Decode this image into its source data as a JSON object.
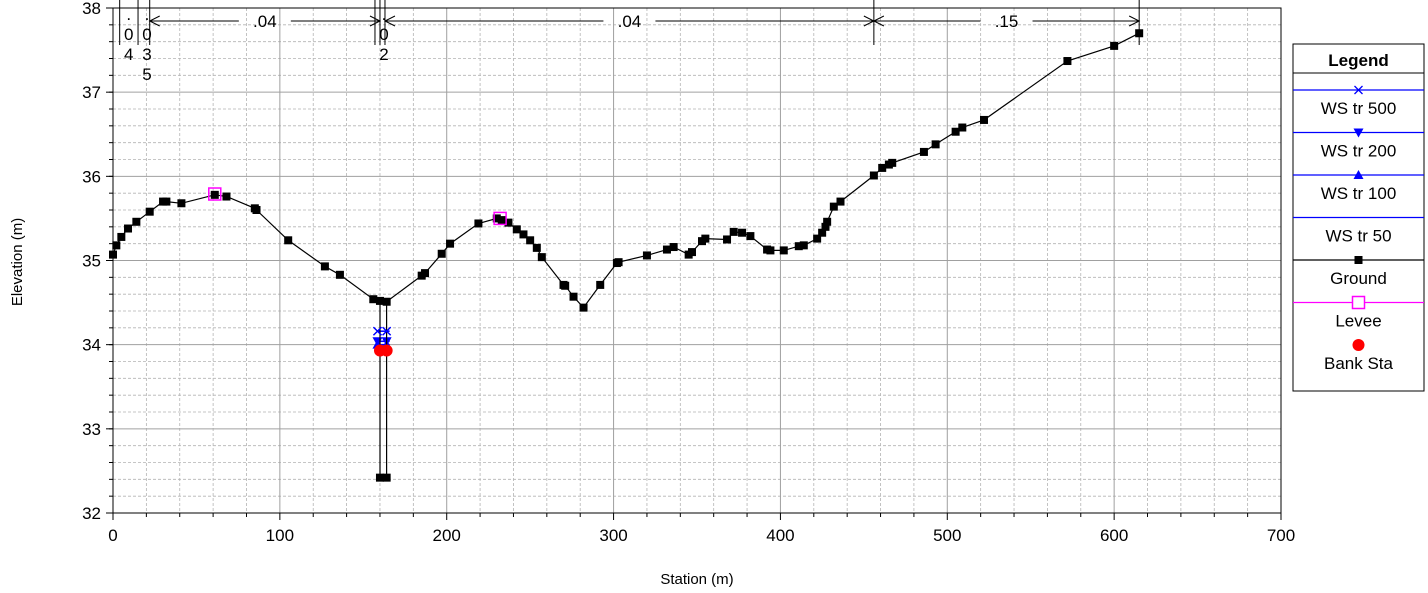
{
  "chart_data": {
    "type": "line",
    "xlabel": "Station (m)",
    "ylabel": "Elevation (m)",
    "xlim": [
      0,
      700
    ],
    "ylim": [
      32,
      38
    ],
    "x_ticks": [
      "0",
      "100",
      "200",
      "300",
      "400",
      "500",
      "600",
      "700"
    ],
    "y_ticks": [
      "32",
      "33",
      "34",
      "35",
      "36",
      "37",
      "38"
    ],
    "grid": "major solid, minor dashed",
    "legend_placement": "right",
    "roughness": [
      {
        "label": ".04",
        "from": 22,
        "to": 160
      },
      {
        "label": ".04",
        "from": 163,
        "to": 456
      },
      {
        "label": ".15",
        "from": 456,
        "to": 615
      }
    ],
    "station_labels": [
      {
        "x": 7,
        "text": ".04"
      },
      {
        "x": 18,
        "text": ".035"
      },
      {
        "x": 160,
        "text": ".02"
      }
    ],
    "ground": {
      "x": [
        0,
        2,
        5,
        9,
        14,
        22,
        30,
        32,
        41,
        61,
        68,
        85,
        86,
        105,
        127,
        136,
        156,
        160,
        160,
        164,
        164,
        185,
        187,
        197,
        202,
        219,
        230,
        233,
        237,
        242,
        246,
        250,
        254,
        257,
        270,
        271,
        276,
        282,
        292,
        302,
        303,
        320,
        332,
        336,
        345,
        347,
        353,
        355,
        368,
        372,
        377,
        382,
        392,
        394,
        402,
        411,
        414,
        422,
        425,
        427,
        428,
        432,
        436,
        456,
        461,
        465,
        467,
        486,
        493,
        505,
        509,
        522,
        572,
        600,
        615
      ],
      "y": [
        35.07,
        35.18,
        35.28,
        35.38,
        35.46,
        35.58,
        35.7,
        35.7,
        35.68,
        35.78,
        35.76,
        35.62,
        35.6,
        35.24,
        34.93,
        34.83,
        34.54,
        34.52,
        32.42,
        32.42,
        34.51,
        34.82,
        34.85,
        35.08,
        35.2,
        35.44,
        35.5,
        35.48,
        35.45,
        35.37,
        35.31,
        35.24,
        35.15,
        35.04,
        34.71,
        34.7,
        34.57,
        34.44,
        34.71,
        34.97,
        34.98,
        35.06,
        35.13,
        35.16,
        35.07,
        35.1,
        35.23,
        35.26,
        35.25,
        35.34,
        35.33,
        35.29,
        35.13,
        35.12,
        35.12,
        35.17,
        35.18,
        35.26,
        35.33,
        35.4,
        35.46,
        35.64,
        35.7,
        36.01,
        36.1,
        36.14,
        36.16,
        36.29,
        36.38,
        36.53,
        36.58,
        36.67,
        37.37,
        37.55,
        37.7
      ]
    },
    "levees": [
      {
        "x": 61,
        "y": 35.79
      },
      {
        "x": 232,
        "y": 35.5
      }
    ],
    "bank_stations": [
      {
        "x": 160,
        "y": 33.93
      },
      {
        "x": 164,
        "y": 33.93
      }
    ],
    "series": [
      {
        "name": "WS tr 500",
        "color": "#0000ff",
        "marker": "x",
        "elevation": 34.16
      },
      {
        "name": "WS tr 200",
        "color": "#0000ff",
        "marker": "triangle-down",
        "elevation": 34.04
      },
      {
        "name": "WS tr 100",
        "color": "#0000ff",
        "marker": "triangle-up",
        "elevation": 34.0
      },
      {
        "name": "WS tr 50",
        "color": "#0000ff",
        "marker": "none",
        "elevation": 33.94
      },
      {
        "name": "Ground",
        "color": "#000000",
        "marker": "square"
      },
      {
        "name": "Levee",
        "color": "#ff00ff",
        "marker": "open-square"
      },
      {
        "name": "Bank Sta",
        "color": "#ff0000",
        "marker": "circle"
      }
    ],
    "legend": {
      "title": "Legend"
    }
  }
}
